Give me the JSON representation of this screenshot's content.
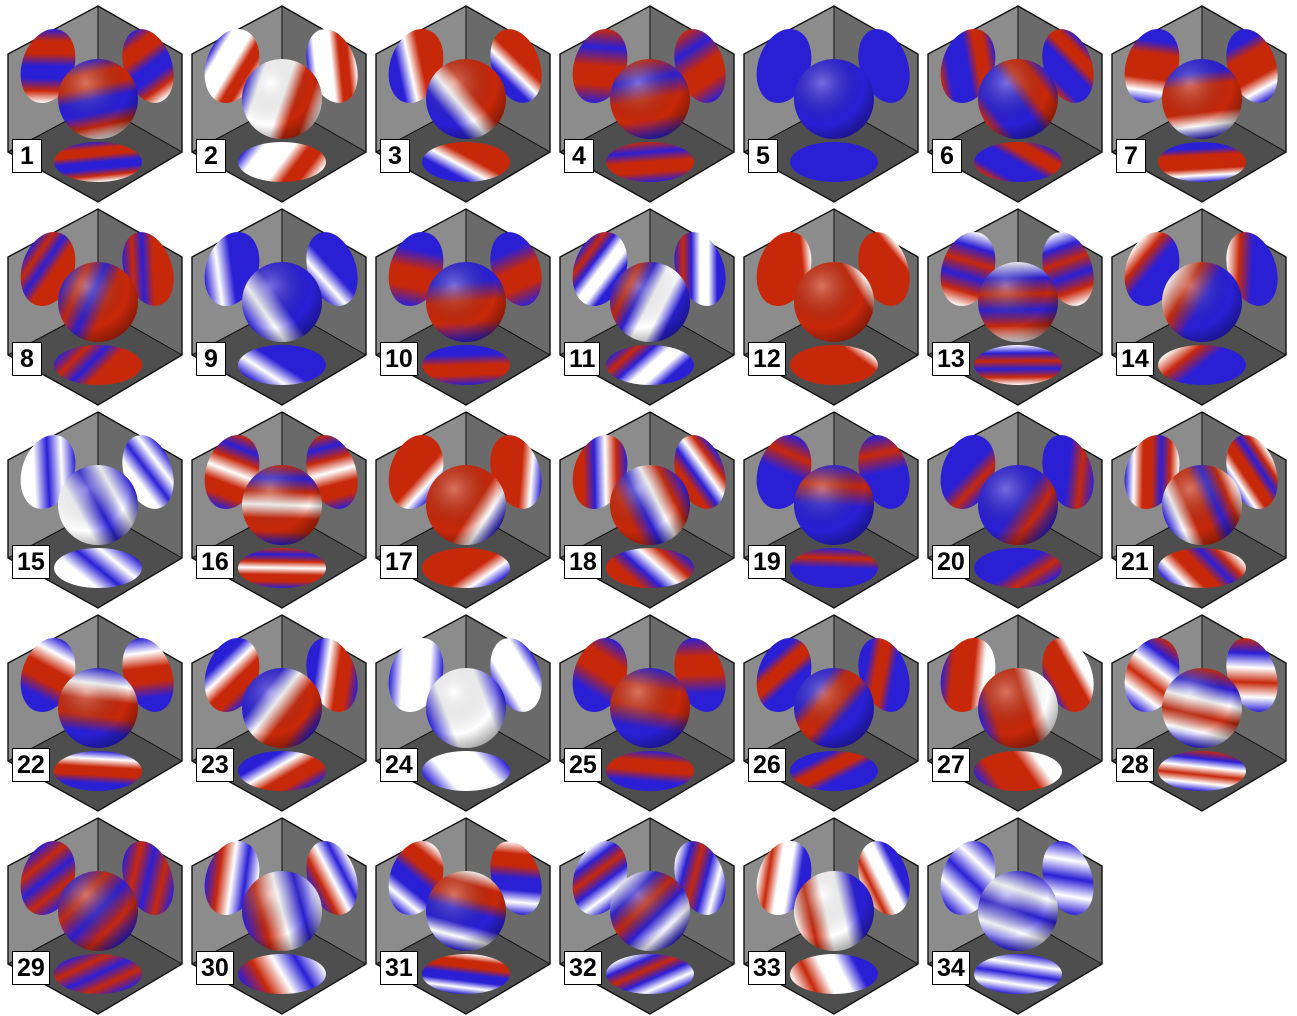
{
  "figure": {
    "panel_count": 34,
    "columns": 7,
    "colormap": {
      "negative": "#2b1fd6",
      "neutral": "#ffffff",
      "positive": "#c8280a"
    },
    "cube_colors": {
      "back_left": "#8c8c8c",
      "back_right": "#6a6a6a",
      "floor": "#4e4e4e",
      "edge": "#111111"
    }
  },
  "panels": [
    {
      "label": "1"
    },
    {
      "label": "2"
    },
    {
      "label": "3"
    },
    {
      "label": "4"
    },
    {
      "label": "5"
    },
    {
      "label": "6"
    },
    {
      "label": "7"
    },
    {
      "label": "8"
    },
    {
      "label": "9"
    },
    {
      "label": "10"
    },
    {
      "label": "11"
    },
    {
      "label": "12"
    },
    {
      "label": "13"
    },
    {
      "label": "14"
    },
    {
      "label": "15"
    },
    {
      "label": "16"
    },
    {
      "label": "17"
    },
    {
      "label": "18"
    },
    {
      "label": "19"
    },
    {
      "label": "20"
    },
    {
      "label": "21"
    },
    {
      "label": "22"
    },
    {
      "label": "23"
    },
    {
      "label": "24"
    },
    {
      "label": "25"
    },
    {
      "label": "26"
    },
    {
      "label": "27"
    },
    {
      "label": "28"
    },
    {
      "label": "29"
    },
    {
      "label": "30"
    },
    {
      "label": "31"
    },
    {
      "label": "32"
    },
    {
      "label": "33"
    },
    {
      "label": "34"
    }
  ]
}
